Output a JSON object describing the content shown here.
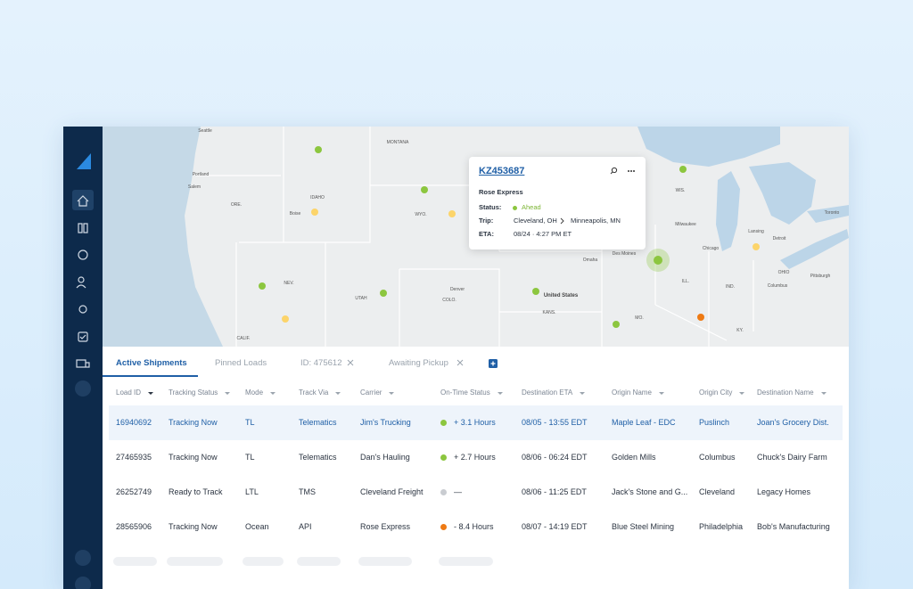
{
  "map": {
    "labels": [
      "Seattle",
      "Portland",
      "Salem",
      "ORE.",
      "IDAHO",
      "Boise",
      "MONTANA",
      "WYO.",
      "NEV.",
      "UTAH",
      "CALIF.",
      "Denver",
      "COLO.",
      "KANS.",
      "United States",
      "Omaha",
      "Des Moines",
      "MO.",
      "ILL.",
      "IND.",
      "OHIO",
      "KY.",
      "Chicago",
      "Milwaukee",
      "WIS.",
      "Lansing",
      "Detroit",
      "Toronto",
      "Pittsburgh",
      "Columbus"
    ]
  },
  "popup": {
    "id": "KZ453687",
    "carrier": "Rose Express",
    "status_label": "Status:",
    "status": "Ahead",
    "trip_label": "Trip:",
    "origin": "Cleveland, OH",
    "destination": "Minneapolis, MN",
    "eta_label": "ETA:",
    "eta": "08/24 · 4:27 PM ET"
  },
  "tabs": [
    "Active Shipments",
    "Pinned Loads",
    "ID: 475612",
    "Awaiting Pickup"
  ],
  "table": {
    "columns": [
      "Load ID",
      "Tracking Status",
      "Mode",
      "Track Via",
      "Carrier",
      "On-Time Status",
      "Destination ETA",
      "Origin Name",
      "Origin City",
      "Destination Name"
    ],
    "rows": [
      [
        "16940692",
        "Tracking Now",
        "TL",
        "Telematics",
        "Jim's Trucking",
        "+ 3.1 Hours",
        "08/05 - 13:55 EDT",
        "Maple Leaf - EDC",
        "Puslinch",
        "Joan's Grocery Dist."
      ],
      [
        "27465935",
        "Tracking Now",
        "TL",
        "Telematics",
        "Dan's Hauling",
        "+ 2.7 Hours",
        "08/06 - 06:24 EDT",
        "Golden Mills",
        "Columbus",
        "Chuck's Dairy Farm"
      ],
      [
        "26252749",
        "Ready to Track",
        "LTL",
        "TMS",
        "Cleveland Freight",
        "—",
        "08/06 - 11:25 EDT",
        "Jack's Stone and G...",
        "Cleveland",
        "Legacy Homes"
      ],
      [
        "28565906",
        "Tracking Now",
        "Ocean",
        "API",
        "Rose Express",
        "- 8.4 Hours",
        "08/07 - 14:19 EDT",
        "Blue Steel Mining",
        "Philadelphia",
        "Bob's Manufacturing"
      ]
    ],
    "status_colors": [
      "#8cc63f",
      "#8cc63f",
      "#c9ccd1",
      "#ee7a14"
    ]
  }
}
